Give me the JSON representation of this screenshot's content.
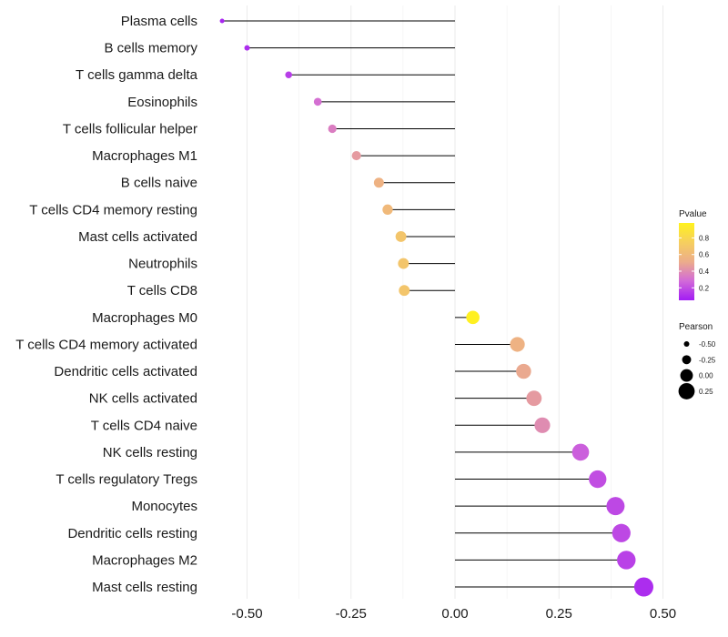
{
  "chart_data": {
    "type": "lollipop",
    "title": "",
    "xlabel": "",
    "ylabel": "",
    "xlim": [
      -0.6,
      0.55
    ],
    "x_ticks": [
      -0.5,
      -0.25,
      0.0,
      0.25,
      0.5
    ],
    "x_tick_labels": [
      "-0.50",
      "-0.25",
      "0.00",
      "0.25",
      "0.50"
    ],
    "grid": "vertical",
    "categories": [
      "Plasma cells",
      "B cells memory",
      "T cells gamma delta",
      "Eosinophils",
      "T cells follicular helper",
      "Macrophages M1",
      "B cells naive",
      "T cells CD4 memory resting",
      "Mast cells activated",
      "Neutrophils",
      "T cells CD8",
      "Macrophages M0",
      "T cells CD4 memory activated",
      "Dendritic cells activated",
      "NK cells activated",
      "T cells CD4 naive",
      "NK cells resting",
      "T cells regulatory  Tregs ",
      "Monocytes",
      "Dendritic cells resting",
      "Macrophages M2",
      "Mast cells resting"
    ],
    "pearson": [
      -0.56,
      -0.5,
      -0.4,
      -0.33,
      -0.295,
      -0.237,
      -0.183,
      -0.162,
      -0.13,
      -0.124,
      -0.122,
      0.043,
      0.15,
      0.165,
      0.19,
      0.21,
      0.302,
      0.343,
      0.386,
      0.4,
      0.412,
      0.454
    ],
    "pvalue": [
      0.08,
      0.1,
      0.15,
      0.3,
      0.35,
      0.45,
      0.55,
      0.6,
      0.68,
      0.68,
      0.68,
      0.97,
      0.55,
      0.5,
      0.45,
      0.4,
      0.25,
      0.2,
      0.18,
      0.18,
      0.16,
      0.1
    ],
    "legend_pvalue": {
      "title": "Pvalue",
      "ticks": [
        0.8,
        0.6,
        0.4,
        0.2
      ],
      "tick_labels": [
        "0.8",
        "0.6",
        "0.4",
        "0.2"
      ],
      "range": [
        0.05,
        0.98
      ],
      "colors": [
        "#a21cf4",
        "#d26ad8",
        "#ecad8a",
        "#f6cf5e",
        "#fff21e"
      ]
    },
    "legend_pearson": {
      "title": "Pearson",
      "values": [
        -0.5,
        -0.25,
        0.0,
        0.25
      ],
      "labels": [
        "-0.50",
        "-0.25",
        "0.00",
        "0.25"
      ]
    },
    "placement": "legend right"
  }
}
